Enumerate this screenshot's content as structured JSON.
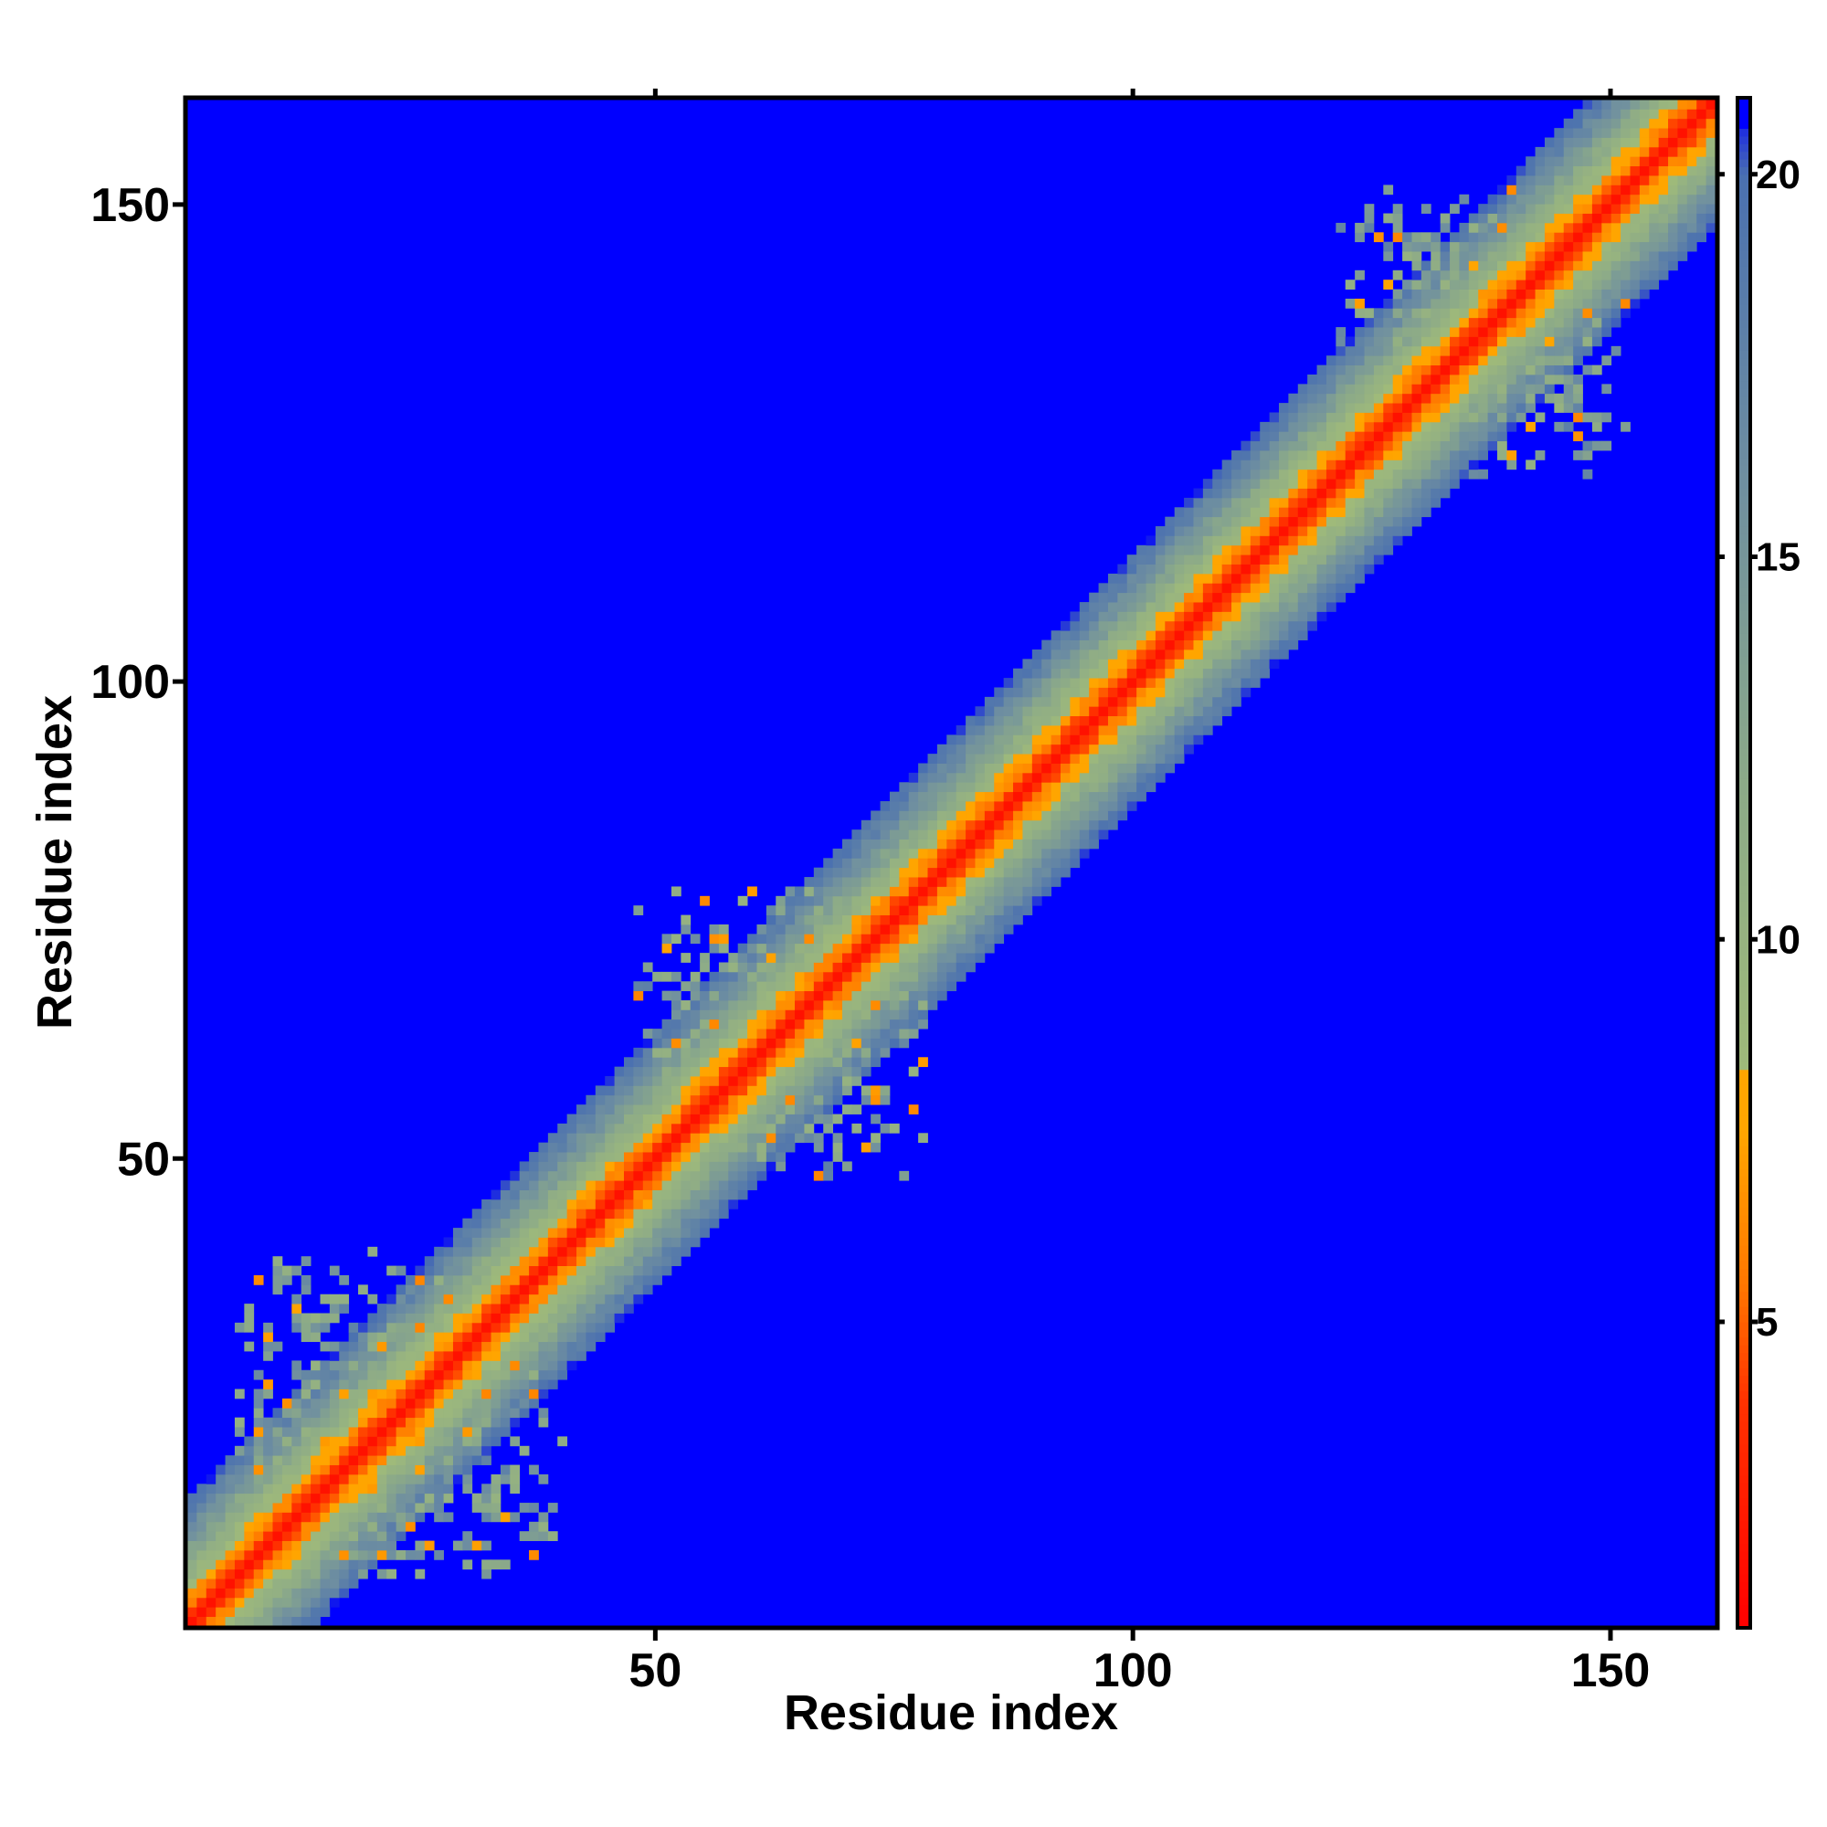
{
  "chart_data": {
    "type": "heatmap",
    "title": "",
    "xlabel": "Residue index",
    "ylabel": "Residue index",
    "n_residues": 161,
    "xlim": [
      1,
      161
    ],
    "ylim": [
      1,
      161
    ],
    "x_ticks": [
      50,
      100,
      150
    ],
    "y_ticks": [
      50,
      100,
      150
    ],
    "x_tick_labels": [
      "50",
      "100",
      "150"
    ],
    "y_tick_labels": [
      "50",
      "100",
      "150"
    ],
    "colorbar": {
      "range": [
        1,
        21
      ],
      "ticks": [
        5,
        10,
        15,
        20
      ],
      "tick_labels": [
        "5",
        "10",
        "15",
        "20"
      ],
      "placement": "right"
    },
    "color_scale": [
      {
        "value": 1,
        "color": "#ff0000"
      },
      {
        "value": 4,
        "color": "#ff3300"
      },
      {
        "value": 5.5,
        "color": "#ff7700"
      },
      {
        "value": 7.5,
        "color": "#ffa500"
      },
      {
        "value": 8.3,
        "color": "#9fba7a"
      },
      {
        "value": 12,
        "color": "#8caa88"
      },
      {
        "value": 16,
        "color": "#6f8fa0"
      },
      {
        "value": 20,
        "color": "#4a70b0"
      },
      {
        "value": 21,
        "color": "#0000ff"
      }
    ],
    "cap_value": 21,
    "diagonal_band": {
      "description_values": "distance grows with sequence separation |i-j|",
      "points": [
        [
          0,
          2
        ],
        [
          1,
          3.8
        ],
        [
          2,
          5.5
        ],
        [
          3,
          7
        ],
        [
          4,
          8.5
        ],
        [
          6,
          11
        ],
        [
          8,
          13.5
        ],
        [
          10,
          16
        ],
        [
          12,
          18.5
        ],
        [
          14,
          21
        ]
      ]
    },
    "domains": [
      {
        "center": [
          23,
          23
        ],
        "half_width": 17
      },
      {
        "center": [
          63,
          63
        ],
        "half_width": 15
      },
      {
        "center": [
          137,
          137
        ],
        "half_width": 15
      }
    ]
  }
}
